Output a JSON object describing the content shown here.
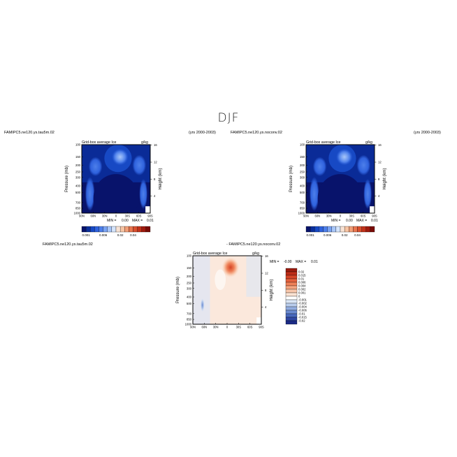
{
  "figure": {
    "title": "DJF",
    "axis_pressure_label": "Pressure (mb)",
    "axis_height_label": "Height (km)",
    "unit_label": "g/kg",
    "variable_title": "Grid-box average Ice",
    "pressure_ticks": [
      "100",
      "150",
      "200",
      "250",
      "300",
      "400",
      "500",
      "700",
      "850",
      "1000"
    ],
    "height_ticks": [
      "16",
      "12",
      "8",
      "4"
    ],
    "lat_ticks": [
      "90N",
      "60N",
      "30N",
      "0",
      "30S",
      "60S",
      "90S"
    ]
  },
  "panels": [
    {
      "case": "FAMIPC5.ne120.ys.tau5m.02",
      "years": "(yrs 2000-2003)",
      "min_label": "MIN =",
      "min_value": "0.00",
      "max_label": "MAX =",
      "max_value": "0.01"
    },
    {
      "case": "FAMIPC5.ne120.ys.noconv.02",
      "years": "(yrs 2000-2003)",
      "min_label": "MIN =",
      "min_value": "0.00",
      "max_label": "MAX =",
      "max_value": "0.01"
    },
    {
      "case": "FAMIPC5.ne120.ys.tau5m.02",
      "title_prefix": "- ",
      "case_b": "FAMIPC5.ne120.ys.noconv.02",
      "min_label": "MIN =",
      "min_value": "-0.00",
      "max_label": "MAX =",
      "max_value": "0.01"
    }
  ],
  "colorbar_horizontal": {
    "labels": [
      "0.001",
      "0.006",
      "0.02",
      "0.04"
    ],
    "colors": [
      "#08136b",
      "#0b2f9c",
      "#1749c4",
      "#2f62dd",
      "#4d7fea",
      "#7aa3f2",
      "#a8c6f8",
      "#d4e4fb",
      "#f7e2d4",
      "#f6c4a4",
      "#f19f78",
      "#e9764f",
      "#d9502f",
      "#c2321b",
      "#a01a0e",
      "#7a0b06"
    ]
  },
  "colorbar_vertical": {
    "labels": [
      "0.02",
      "0.015",
      "0.01",
      "0.006",
      "0.004",
      "0.002",
      "0.001",
      "0",
      "-0.001",
      "-0.002",
      "-0.004",
      "-0.006",
      "-0.01",
      "-0.015",
      "-0.02"
    ],
    "colors": [
      "#9a1b0e",
      "#bd2c17",
      "#d54427",
      "#e4613d",
      "#ee8057",
      "#f4a47f",
      "#f8c6aa",
      "#fbe3d3",
      "#ffffff",
      "#dbe6f6",
      "#b9ccec",
      "#92ade0",
      "#6b8bd1",
      "#4868bd",
      "#2f47a3",
      "#1b2a86"
    ]
  },
  "chart_data": [
    {
      "type": "heatmap",
      "title": "Grid-box average Ice",
      "xlabel": "",
      "ylabel": "Pressure (mb)",
      "y2label": "Height (km)",
      "units": "g/kg",
      "x_ticks": [
        "90N",
        "60N",
        "30N",
        "0",
        "30S",
        "60S",
        "90S"
      ],
      "y_ticks": [
        100,
        150,
        200,
        250,
        300,
        400,
        500,
        700,
        850,
        1000
      ],
      "y2_ticks": [
        16,
        12,
        8,
        4
      ],
      "ylim": [
        1000,
        100
      ],
      "colorbar_levels": [
        0.001,
        0.006,
        0.02,
        0.04
      ],
      "min": 0.0,
      "max": 0.01
    },
    {
      "type": "heatmap",
      "title": "Grid-box average Ice",
      "xlabel": "",
      "ylabel": "Pressure (mb)",
      "y2label": "Height (km)",
      "units": "g/kg",
      "x_ticks": [
        "90N",
        "60N",
        "30N",
        "0",
        "30S",
        "60S",
        "90S"
      ],
      "y_ticks": [
        100,
        150,
        200,
        250,
        300,
        400,
        500,
        700,
        850,
        1000
      ],
      "y2_ticks": [
        16,
        12,
        8,
        4
      ],
      "ylim": [
        1000,
        100
      ],
      "colorbar_levels": [
        0.001,
        0.006,
        0.02,
        0.04
      ],
      "min": 0.0,
      "max": 0.01
    },
    {
      "type": "heatmap",
      "title": "Grid-box average Ice",
      "xlabel": "",
      "ylabel": "Pressure (mb)",
      "y2label": "Height (km)",
      "units": "g/kg",
      "x_ticks": [
        "90N",
        "60N",
        "30N",
        "0",
        "30S",
        "60S",
        "90S"
      ],
      "y_ticks": [
        100,
        150,
        200,
        250,
        300,
        400,
        500,
        700,
        850,
        1000
      ],
      "y2_ticks": [
        16,
        12,
        8,
        4
      ],
      "ylim": [
        1000,
        100
      ],
      "colorbar_levels": [
        0.02,
        0.015,
        0.01,
        0.006,
        0.004,
        0.002,
        0.001,
        0,
        -0.001,
        -0.002,
        -0.004,
        -0.006,
        -0.01,
        -0.015,
        -0.02
      ],
      "min": -0.0,
      "max": 0.01
    }
  ]
}
